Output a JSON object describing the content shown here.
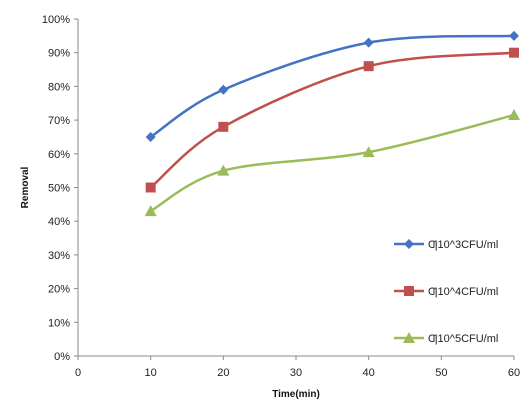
{
  "chart_data": {
    "type": "line",
    "xlabel": "Time(min)",
    "ylabel": "Removal",
    "xlim": [
      0,
      60
    ],
    "ylim": [
      0,
      100
    ],
    "x_ticks": [
      0,
      10,
      20,
      30,
      40,
      50,
      60
    ],
    "y_ticks": [
      0,
      10,
      20,
      30,
      40,
      50,
      60,
      70,
      80,
      90,
      100
    ],
    "y_tick_format": "%",
    "grid": false,
    "legend_position": "right",
    "x": [
      10,
      20,
      40,
      60
    ],
    "series": [
      {
        "name": "Ƣ10^3CFU/ml",
        "color": "#4472C4",
        "marker": "diamond",
        "values": [
          65,
          79,
          93,
          95
        ]
      },
      {
        "name": "Ƣ10^4CFU/ml",
        "color": "#C0504D",
        "marker": "square",
        "values": [
          50,
          68,
          86,
          90
        ]
      },
      {
        "name": "Ƣ10^5CFU/ml",
        "color": "#9BBB59",
        "marker": "triangle",
        "values": [
          43,
          55,
          60.5,
          71.5
        ]
      }
    ]
  }
}
